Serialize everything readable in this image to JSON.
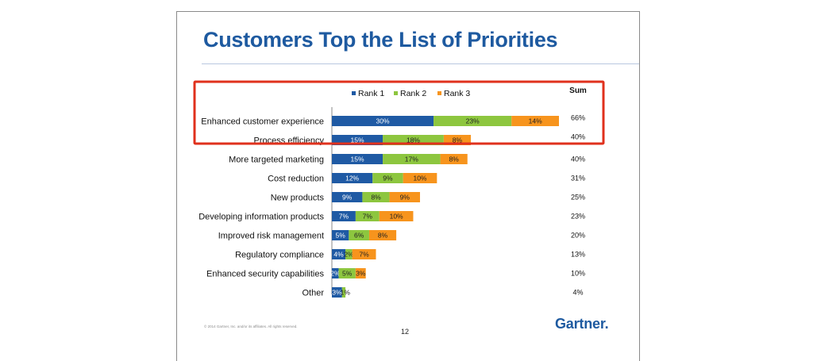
{
  "slide": {
    "title": "Customers Top the List of Priorities",
    "copyright": "© 2014 Gartner, Inc. and/or its affiliates. All rights reserved.",
    "page_number": "12",
    "logo": "Gartner"
  },
  "colors": {
    "rank1": "#1f5aa4",
    "rank2": "#8dc63f",
    "rank3": "#f7941d",
    "highlight": "#e0311d",
    "title": "#1e5aa0"
  },
  "chart_data": {
    "type": "bar",
    "orientation": "horizontal",
    "stacked": true,
    "legend_position": "top",
    "grid": false,
    "sum_label": "Sum",
    "categories": [
      "Enhanced customer experience",
      "Process efficiency",
      "More targeted marketing",
      "Cost reduction",
      "New products",
      "Developing information products",
      "Improved risk management",
      "Regulatory compliance",
      "Enhanced security capabilities",
      "Other"
    ],
    "series": [
      {
        "name": "Rank 1",
        "color": "#1f5aa4",
        "values": [
          30,
          15,
          15,
          12,
          9,
          7,
          5,
          4,
          2,
          3
        ]
      },
      {
        "name": "Rank 2",
        "color": "#8dc63f",
        "values": [
          23,
          18,
          17,
          9,
          8,
          7,
          6,
          2,
          5,
          1
        ]
      },
      {
        "name": "Rank 3",
        "color": "#f7941d",
        "values": [
          14,
          8,
          8,
          10,
          9,
          10,
          8,
          7,
          3,
          0
        ]
      }
    ],
    "value_labels": [
      [
        "30%",
        "23%",
        "14%"
      ],
      [
        "15%",
        "18%",
        "8%"
      ],
      [
        "15%",
        "17%",
        "8%"
      ],
      [
        "12%",
        "9%",
        "10%"
      ],
      [
        "9%",
        "8%",
        "9%"
      ],
      [
        "7%",
        "7%",
        "10%"
      ],
      [
        "5%",
        "6%",
        "8%"
      ],
      [
        "4%",
        "2%",
        "7%"
      ],
      [
        "2%",
        "5%",
        "3%"
      ],
      [
        "3%",
        "1%",
        ""
      ]
    ],
    "sums": [
      "66%",
      "40%",
      "40%",
      "31%",
      "25%",
      "23%",
      "20%",
      "13%",
      "10%",
      "4%"
    ],
    "highlighted_categories": [
      "Enhanced customer experience",
      "Process efficiency"
    ],
    "xlim": [
      0,
      67
    ]
  }
}
